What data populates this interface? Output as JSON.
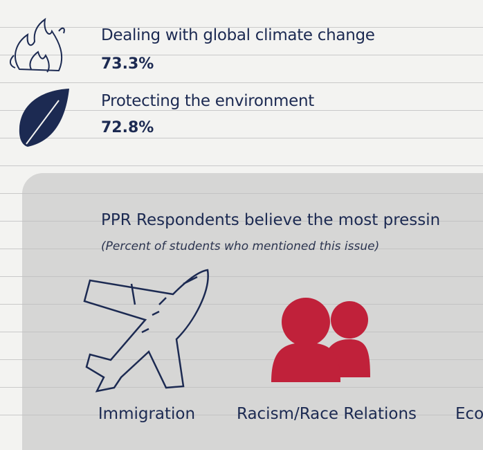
{
  "items": [
    {
      "label": "Dealing with global climate change",
      "value": "73.3%"
    },
    {
      "label": "Protecting the environment",
      "value": "72.8%"
    }
  ],
  "section": {
    "title": "PPR Respondents believe the most pressin",
    "subtitle": "(Percent of students who mentioned this issue)",
    "issues": [
      "Immigration",
      "Racism/Race Relations",
      "Eco"
    ]
  }
}
